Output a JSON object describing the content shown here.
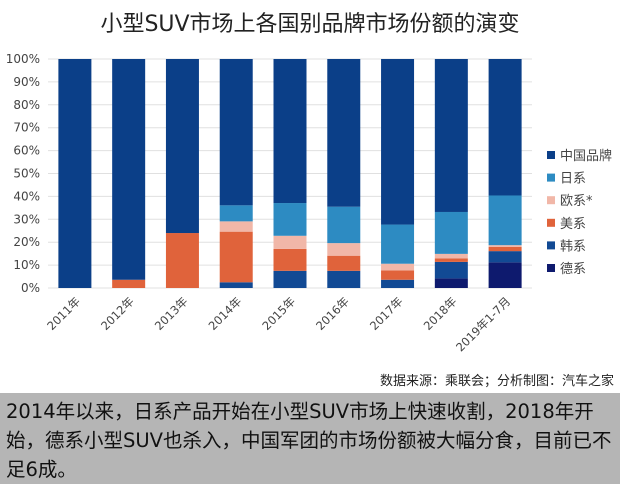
{
  "title": "小型SUV市场上各国别品牌市场份额的演变",
  "source": "数据来源：乘联会；分析制图：汽车之家",
  "caption": "2014年以来，日系产品开始在小型SUV市场上快速收割，2018年开始，德系小型SUV也杀入，中国军团的市场份额被大幅分食，目前已不足6成。",
  "chart_data": {
    "type": "bar",
    "stacked": true,
    "percent": true,
    "title": "小型SUV市场上各国别品牌市场份额的演变",
    "ylim": [
      0,
      100
    ],
    "yticks": [
      "0%",
      "10%",
      "20%",
      "30%",
      "40%",
      "50%",
      "60%",
      "70%",
      "80%",
      "90%",
      "100%"
    ],
    "grid": true,
    "legend_position": "right",
    "categories": [
      "2011年",
      "2012年",
      "2013年",
      "2014年",
      "2015年",
      "2016年",
      "2017年",
      "2018年",
      "2019年1-7月"
    ],
    "series": [
      {
        "name": "德系",
        "color": "#0e1a6e",
        "values": [
          0,
          0,
          0,
          0,
          0,
          0,
          0,
          4.2,
          11.2
        ]
      },
      {
        "name": "韩系",
        "color": "#124a94",
        "values": [
          0,
          0,
          0,
          2.5,
          7.5,
          7.5,
          3.6,
          7.2,
          4.9
        ]
      },
      {
        "name": "美系",
        "color": "#e0633b",
        "values": [
          0,
          3.6,
          24.0,
          22.1,
          9.6,
          6.6,
          4.1,
          1.5,
          1.9
        ]
      },
      {
        "name": "欧系*",
        "color": "#f1b7a8",
        "values": [
          0,
          0,
          0,
          4.5,
          5.7,
          5.5,
          2.9,
          2.0,
          0.7
        ]
      },
      {
        "name": "日系",
        "color": "#2d8bc2",
        "values": [
          0,
          0,
          0,
          7.0,
          14.3,
          15.9,
          17.1,
          18.3,
          21.7
        ]
      },
      {
        "name": "中国品牌",
        "color": "#0b3f88",
        "values": [
          100,
          96.4,
          76.0,
          63.9,
          62.9,
          64.5,
          72.3,
          66.8,
          59.6
        ]
      }
    ]
  }
}
